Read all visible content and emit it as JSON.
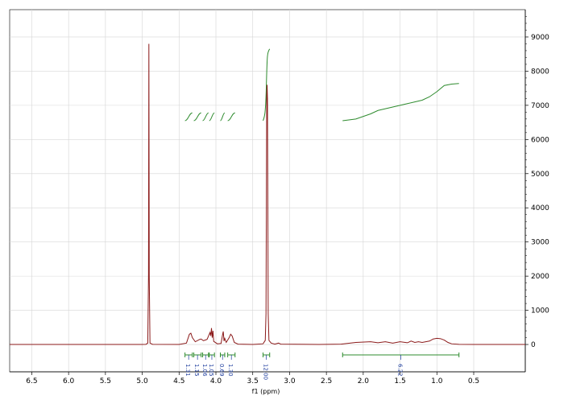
{
  "chart_data": {
    "type": "line",
    "xlabel": "f1 (ppm)",
    "ylabel": "",
    "xlim": [
      6.8,
      -0.2
    ],
    "x_reversed": true,
    "ylim": [
      -800,
      9800
    ],
    "x_ticks": [
      "6.5",
      "6.0",
      "5.5",
      "5.0",
      "4.5",
      "4.0",
      "3.5",
      "3.0",
      "2.5",
      "2.0",
      "1.5",
      "1.0",
      "0.5"
    ],
    "x_tick_values": [
      6.5,
      6.0,
      5.5,
      5.0,
      4.5,
      4.0,
      3.5,
      3.0,
      2.5,
      2.0,
      1.5,
      1.0,
      0.5
    ],
    "y_ticks": [
      "9000",
      "8000",
      "7000",
      "6000",
      "5000",
      "4000",
      "3000",
      "2000",
      "1000",
      "0"
    ],
    "y_tick_values": [
      9000,
      8000,
      7000,
      6000,
      5000,
      4000,
      3000,
      2000,
      1000,
      0
    ],
    "grid": true,
    "series": [
      {
        "color": "#8b1a1a",
        "points": [
          [
            6.8,
            0
          ],
          [
            5.0,
            0
          ],
          [
            4.95,
            5
          ],
          [
            4.925,
            40
          ],
          [
            4.915,
            2000
          ],
          [
            4.91,
            8800
          ],
          [
            4.905,
            2000
          ],
          [
            4.895,
            40
          ],
          [
            4.86,
            5
          ],
          [
            4.5,
            0
          ],
          [
            4.4,
            40
          ],
          [
            4.36,
            300
          ],
          [
            4.34,
            330
          ],
          [
            4.32,
            200
          ],
          [
            4.28,
            80
          ],
          [
            4.22,
            150
          ],
          [
            4.2,
            160
          ],
          [
            4.17,
            110
          ],
          [
            4.12,
            150
          ],
          [
            4.1,
            250
          ],
          [
            4.08,
            350
          ],
          [
            4.07,
            250
          ],
          [
            4.06,
            480
          ],
          [
            4.05,
            200
          ],
          [
            4.04,
            400
          ],
          [
            4.03,
            90
          ],
          [
            3.98,
            20
          ],
          [
            3.93,
            30
          ],
          [
            3.91,
            280
          ],
          [
            3.9,
            380
          ],
          [
            3.89,
            100
          ],
          [
            3.88,
            180
          ],
          [
            3.86,
            60
          ],
          [
            3.82,
            200
          ],
          [
            3.8,
            300
          ],
          [
            3.78,
            250
          ],
          [
            3.75,
            60
          ],
          [
            3.7,
            10
          ],
          [
            3.5,
            0
          ],
          [
            3.45,
            8
          ],
          [
            3.36,
            20
          ],
          [
            3.33,
            120
          ],
          [
            3.32,
            900
          ],
          [
            3.31,
            7300
          ],
          [
            3.305,
            7600
          ],
          [
            3.3,
            7200
          ],
          [
            3.29,
            900
          ],
          [
            3.28,
            120
          ],
          [
            3.25,
            40
          ],
          [
            3.2,
            10
          ],
          [
            3.15,
            40
          ],
          [
            3.12,
            10
          ],
          [
            2.6,
            0
          ],
          [
            2.3,
            10
          ],
          [
            2.1,
            60
          ],
          [
            1.9,
            80
          ],
          [
            1.8,
            50
          ],
          [
            1.7,
            80
          ],
          [
            1.6,
            40
          ],
          [
            1.5,
            80
          ],
          [
            1.4,
            50
          ],
          [
            1.35,
            100
          ],
          [
            1.3,
            60
          ],
          [
            1.25,
            80
          ],
          [
            1.2,
            60
          ],
          [
            1.1,
            100
          ],
          [
            1.05,
            160
          ],
          [
            1.0,
            180
          ],
          [
            0.95,
            170
          ],
          [
            0.9,
            130
          ],
          [
            0.85,
            60
          ],
          [
            0.8,
            20
          ],
          [
            0.7,
            5
          ],
          [
            0.5,
            0
          ],
          [
            -0.2,
            0
          ]
        ]
      }
    ],
    "integrals": [
      {
        "from": 4.42,
        "to": 4.32,
        "value": "1.31"
      },
      {
        "from": 4.3,
        "to": 4.2,
        "value": "1.15"
      },
      {
        "from": 4.18,
        "to": 4.1,
        "value": "1.06"
      },
      {
        "from": 4.09,
        "to": 4.02,
        "value": "1.05"
      },
      {
        "from": 3.94,
        "to": 3.88,
        "value": "0.69"
      },
      {
        "from": 3.84,
        "to": 3.74,
        "value": "1.30"
      },
      {
        "from": 3.36,
        "to": 3.27,
        "value": "12.00"
      },
      {
        "from": 2.28,
        "to": 0.7,
        "value": "6.22"
      }
    ],
    "integral_color": "#2e8b2e"
  }
}
